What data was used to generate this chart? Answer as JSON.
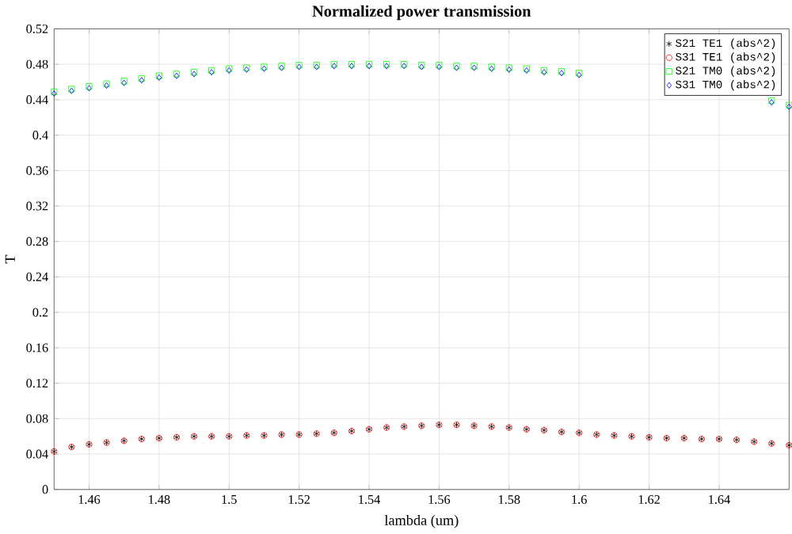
{
  "chart_data": {
    "type": "scatter",
    "title": "Normalized power transmission",
    "xlabel": "lambda (um)",
    "ylabel": "T",
    "x": [
      1.45,
      1.455,
      1.46,
      1.465,
      1.47,
      1.475,
      1.48,
      1.485,
      1.49,
      1.495,
      1.5,
      1.505,
      1.51,
      1.515,
      1.52,
      1.525,
      1.53,
      1.535,
      1.54,
      1.545,
      1.55,
      1.555,
      1.56,
      1.565,
      1.57,
      1.575,
      1.58,
      1.585,
      1.59,
      1.595,
      1.6,
      1.605,
      1.61,
      1.615,
      1.62,
      1.625,
      1.63,
      1.635,
      1.64,
      1.645,
      1.65,
      1.655,
      1.66
    ],
    "series": [
      {
        "name": "S21 TE1 (abs^2)",
        "color": "#000000",
        "marker": "cross",
        "values": [
          0.043,
          0.048,
          0.051,
          0.053,
          0.055,
          0.057,
          0.058,
          0.059,
          0.06,
          0.06,
          0.06,
          0.061,
          0.061,
          0.062,
          0.062,
          0.063,
          0.064,
          0.066,
          0.068,
          0.07,
          0.071,
          0.072,
          0.073,
          0.073,
          0.072,
          0.071,
          0.07,
          0.068,
          0.067,
          0.065,
          0.064,
          0.062,
          0.061,
          0.06,
          0.059,
          0.058,
          0.058,
          0.057,
          0.057,
          0.056,
          0.054,
          0.052,
          0.05
        ]
      },
      {
        "name": "S31 TE1 (abs^2)",
        "color": "#ff0000",
        "marker": "circle",
        "values": [
          0.043,
          0.048,
          0.051,
          0.053,
          0.055,
          0.057,
          0.058,
          0.059,
          0.06,
          0.06,
          0.06,
          0.061,
          0.061,
          0.062,
          0.062,
          0.063,
          0.064,
          0.066,
          0.068,
          0.07,
          0.071,
          0.072,
          0.073,
          0.073,
          0.072,
          0.071,
          0.07,
          0.068,
          0.067,
          0.065,
          0.064,
          0.062,
          0.061,
          0.06,
          0.059,
          0.058,
          0.058,
          0.057,
          0.057,
          0.056,
          0.054,
          0.052,
          0.05
        ]
      },
      {
        "name": "S21 TM0 (abs^2)",
        "color": "#00ff00",
        "marker": "square",
        "values": [
          0.449,
          0.452,
          0.455,
          0.458,
          0.461,
          0.464,
          0.467,
          0.469,
          0.471,
          0.473,
          0.475,
          0.476,
          0.477,
          0.478,
          0.479,
          0.479,
          0.48,
          0.48,
          0.48,
          0.48,
          0.48,
          0.479,
          0.479,
          0.478,
          0.478,
          0.477,
          0.476,
          0.475,
          0.473,
          0.472,
          0.47,
          null,
          null,
          null,
          null,
          null,
          null,
          null,
          null,
          null,
          null,
          0.439,
          0.434
        ]
      },
      {
        "name": "S31 TM0 (abs^2)",
        "color": "#0000ff",
        "marker": "diamond",
        "values": [
          0.447,
          0.45,
          0.453,
          0.456,
          0.459,
          0.462,
          0.465,
          0.467,
          0.469,
          0.471,
          0.473,
          0.474,
          0.475,
          0.476,
          0.477,
          0.477,
          0.478,
          0.478,
          0.478,
          0.478,
          0.478,
          0.477,
          0.477,
          0.476,
          0.476,
          0.475,
          0.474,
          0.473,
          0.471,
          0.47,
          0.468,
          null,
          null,
          null,
          null,
          null,
          null,
          null,
          null,
          null,
          null,
          0.437,
          0.432
        ]
      }
    ],
    "xlim": [
      1.45,
      1.66
    ],
    "ylim": [
      0,
      0.52
    ],
    "xticks": [
      1.46,
      1.48,
      1.5,
      1.52,
      1.54,
      1.56,
      1.58,
      1.6,
      1.62,
      1.64
    ],
    "yticks": [
      0,
      0.04,
      0.08,
      0.12,
      0.16,
      0.2,
      0.24,
      0.28,
      0.32,
      0.36,
      0.4,
      0.44,
      0.48,
      0.52
    ],
    "grid": true,
    "legend": "top right"
  }
}
